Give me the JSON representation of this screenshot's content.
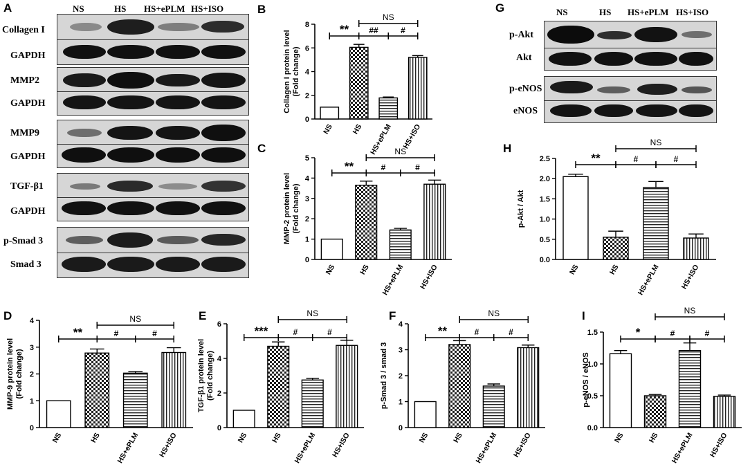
{
  "panel_letters": [
    "A",
    "B",
    "C",
    "D",
    "E",
    "F",
    "G",
    "H",
    "I"
  ],
  "blots": {
    "A": {
      "headers": [
        "NS",
        "HS",
        "HS+ePLM",
        "HS+ISO"
      ],
      "rows": [
        "Collagen I",
        "GAPDH",
        "MMP2",
        "GAPDH",
        "MMP9",
        "GAPDH",
        "TGF-β1",
        "GAPDH",
        "p-Smad 3",
        "Smad 3"
      ]
    },
    "G": {
      "headers": [
        "NS",
        "HS",
        "HS+ePLM",
        "HS+ISO"
      ],
      "rows": [
        "p-Akt",
        "Akt",
        "p-eNOS",
        "eNOS"
      ]
    }
  },
  "colors": {
    "axis": "#000000",
    "bar_fill": "#ffffff",
    "hatch": "#222222",
    "blot_bg": "#d6d6d6",
    "band": "#1a1a1a"
  },
  "chart_data": [
    {
      "id": "B",
      "type": "bar",
      "categories": [
        "NS",
        "HS",
        "HS+ePLM",
        "HS+ISO"
      ],
      "values": [
        1.0,
        6.05,
        1.78,
        5.2
      ],
      "errors": [
        0,
        0.25,
        0.08,
        0.15
      ],
      "ylabel": [
        "Collagen I protein level",
        "(Fold change)"
      ],
      "ylim": [
        0,
        8
      ],
      "yticks": [
        0,
        2,
        4,
        6,
        8
      ],
      "annotations": [
        "**",
        "##",
        "#",
        "NS"
      ]
    },
    {
      "id": "C",
      "type": "bar",
      "categories": [
        "NS",
        "HS",
        "HS+ePLM",
        "HS+ISO"
      ],
      "values": [
        1.0,
        3.65,
        1.45,
        3.7
      ],
      "errors": [
        0,
        0.2,
        0.08,
        0.2
      ],
      "ylabel": [
        "MMP-2 protein level",
        "(Fold change)"
      ],
      "ylim": [
        0,
        5
      ],
      "yticks": [
        0,
        1,
        2,
        3,
        4,
        5
      ],
      "annotations": [
        "**",
        "#",
        "#",
        "NS"
      ]
    },
    {
      "id": "H",
      "type": "bar",
      "categories": [
        "NS",
        "HS",
        "HS+ePLM",
        "HS+ISO"
      ],
      "values": [
        2.05,
        0.55,
        1.78,
        0.53
      ],
      "errors": [
        0.06,
        0.15,
        0.15,
        0.1
      ],
      "ylabel": [
        "p-Akt / Akt"
      ],
      "ylim": [
        0,
        2.5
      ],
      "yticks": [
        0.0,
        0.5,
        1.0,
        1.5,
        2.0,
        2.5
      ],
      "annotations": [
        "**",
        "#",
        "#",
        "NS"
      ]
    },
    {
      "id": "D",
      "type": "bar",
      "categories": [
        "NS",
        "HS",
        "HS+ePLM",
        "HS+ISO"
      ],
      "values": [
        1.0,
        2.78,
        2.03,
        2.8
      ],
      "errors": [
        0,
        0.15,
        0.06,
        0.18
      ],
      "ylabel": [
        "MMP-9 protein level",
        "(Fold change)"
      ],
      "ylim": [
        0,
        4
      ],
      "yticks": [
        0,
        1,
        2,
        3,
        4
      ],
      "annotations": [
        "**",
        "#",
        "#",
        "NS"
      ]
    },
    {
      "id": "E",
      "type": "bar",
      "categories": [
        "NS",
        "HS",
        "HS+ePLM",
        "HS+ISO"
      ],
      "values": [
        1.0,
        4.7,
        2.75,
        4.75
      ],
      "errors": [
        0,
        0.25,
        0.1,
        0.3
      ],
      "ylabel": [
        "TGF-β1 protein level",
        "(Fold change)"
      ],
      "ylim": [
        0,
        6
      ],
      "yticks": [
        0,
        2,
        4,
        6
      ],
      "annotations": [
        "***",
        "#",
        "#",
        "NS"
      ]
    },
    {
      "id": "F",
      "type": "bar",
      "categories": [
        "NS",
        "HS",
        "HS+ePLM",
        "HS+ISO"
      ],
      "values": [
        1.0,
        3.2,
        1.6,
        3.08
      ],
      "errors": [
        0,
        0.15,
        0.08,
        0.1
      ],
      "ylabel": [
        "p-Smad 3 / smad 3"
      ],
      "ylim": [
        0,
        4
      ],
      "yticks": [
        0,
        1,
        2,
        3,
        4
      ],
      "annotations": [
        "**",
        "#",
        "#",
        "NS"
      ]
    },
    {
      "id": "I",
      "type": "bar",
      "categories": [
        "NS",
        "HS",
        "HS+ePLM",
        "HS+ISO"
      ],
      "values": [
        1.16,
        0.5,
        1.21,
        0.49
      ],
      "errors": [
        0.05,
        0.02,
        0.12,
        0.02
      ],
      "ylabel": [
        "p-eNOS / eNOS"
      ],
      "ylim": [
        0,
        1.5
      ],
      "yticks": [
        0.0,
        0.5,
        1.0,
        1.5
      ],
      "annotations": [
        "*",
        "#",
        "#",
        "NS"
      ]
    }
  ]
}
